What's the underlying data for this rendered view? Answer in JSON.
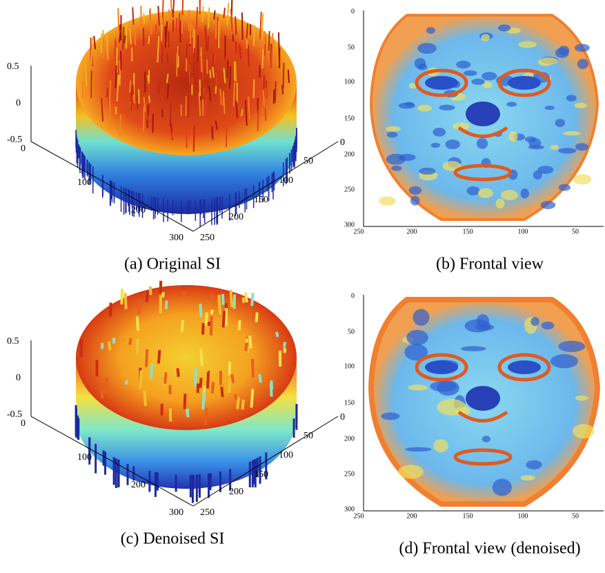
{
  "panels": [
    {
      "caption": "(a) Original SI",
      "z_ticks": [
        "0.5",
        "0",
        "-0.5"
      ],
      "x_ticks": [
        "0",
        "100",
        "200",
        "300"
      ],
      "y_ticks": [
        "0",
        "50",
        "100",
        "150",
        "200",
        "250"
      ]
    },
    {
      "caption": "(b) Frontal view",
      "y_ticks": [
        "0",
        "50",
        "100",
        "150",
        "200",
        "250",
        "300"
      ],
      "x_ticks": [
        "250",
        "200",
        "150",
        "100",
        "50"
      ]
    },
    {
      "caption": "(c) Denoised SI",
      "z_ticks": [
        "0.5",
        "0",
        "-0.5"
      ],
      "x_ticks": [
        "0",
        "100",
        "200",
        "300"
      ],
      "y_ticks": [
        "0",
        "50",
        "100",
        "150",
        "200",
        "250"
      ]
    },
    {
      "caption": "(d) Frontal view (denoised)",
      "y_ticks": [
        "0",
        "50",
        "100",
        "150",
        "200",
        "250",
        "300"
      ],
      "x_ticks": [
        "250",
        "200",
        "150",
        "100",
        "50"
      ]
    }
  ]
}
